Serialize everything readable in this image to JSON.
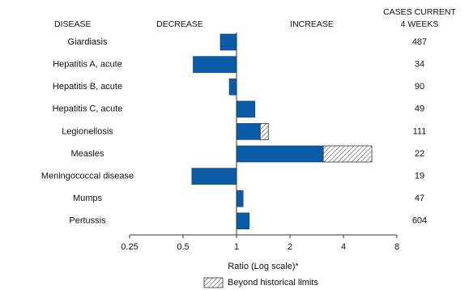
{
  "chart_data": {
    "type": "bar",
    "orientation": "horizontal",
    "log_scale": true,
    "headers": {
      "disease": "DISEASE",
      "decrease": "DECREASE",
      "increase": "INCREASE",
      "cases_line1": "CASES CURRENT",
      "cases_line2": "4 WEEKS"
    },
    "categories": [
      "Giardiasis",
      "Hepatitis A, acute",
      "Hepatitis B, acute",
      "Hepatitis C, acute",
      "Legionellosis",
      "Measles",
      "Meningococcal disease",
      "Mumps",
      "Pertussis"
    ],
    "series": [
      {
        "color": "#0a5ca8",
        "values": [
          0.81,
          0.57,
          0.91,
          1.27,
          1.36,
          3.08,
          0.56,
          1.09,
          1.18
        ]
      },
      {
        "name": "Beyond historical limits",
        "color": "#ffffff",
        "values": [
          null,
          null,
          null,
          null,
          1.51,
          5.78,
          null,
          null,
          null
        ]
      }
    ],
    "cases": [
      487,
      34,
      90,
      49,
      111,
      22,
      19,
      47,
      604
    ],
    "xlabel": "Ratio (Log scale)*",
    "xlim": [
      0.25,
      8
    ],
    "xticks": [
      0.25,
      0.5,
      1,
      2,
      4,
      8
    ]
  }
}
